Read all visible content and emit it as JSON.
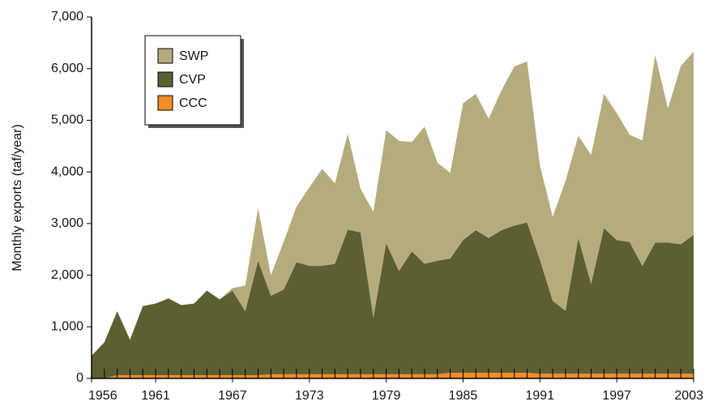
{
  "chart_data": {
    "type": "stacked_area",
    "ylabel": "Monthly exports (taf/year)",
    "x": [
      1956,
      1957,
      1958,
      1959,
      1960,
      1961,
      1962,
      1963,
      1964,
      1965,
      1966,
      1967,
      1968,
      1969,
      1970,
      1971,
      1972,
      1973,
      1974,
      1975,
      1976,
      1977,
      1978,
      1979,
      1980,
      1981,
      1982,
      1983,
      1984,
      1985,
      1986,
      1987,
      1988,
      1989,
      1990,
      1991,
      1992,
      1993,
      1994,
      1995,
      1996,
      1997,
      1998,
      1999,
      2000,
      2001,
      2002,
      2003
    ],
    "series": [
      {
        "name": "SWP",
        "color": "#b5ac7e",
        "values": [
          0,
          0,
          0,
          0,
          0,
          0,
          0,
          0,
          0,
          0,
          0,
          50,
          500,
          1020,
          400,
          930,
          1080,
          1520,
          1880,
          1560,
          1860,
          840,
          2050,
          2190,
          2520,
          2120,
          2660,
          1900,
          1660,
          2650,
          2640,
          2310,
          2710,
          3080,
          3120,
          1830,
          1630,
          2520,
          1980,
          2500,
          2600,
          2460,
          2080,
          2430,
          3630,
          2600,
          3450,
          3550
        ]
      },
      {
        "name": "CVP",
        "color": "#5d5f31",
        "values": [
          440,
          700,
          1240,
          690,
          1340,
          1390,
          1490,
          1360,
          1390,
          1640,
          1470,
          1640,
          1240,
          2220,
          1520,
          1640,
          2170,
          2100,
          2100,
          2140,
          2800,
          2750,
          1100,
          2540,
          2000,
          2380,
          2140,
          2200,
          2210,
          2570,
          2760,
          2610,
          2760,
          2850,
          2910,
          2210,
          1410,
          1220,
          2630,
          1740,
          2820,
          2590,
          2550,
          2090,
          2540,
          2540,
          2510,
          2690
        ]
      },
      {
        "name": "CCC",
        "color": "#f28c28",
        "values": [
          0,
          0,
          60,
          60,
          60,
          60,
          60,
          60,
          60,
          60,
          60,
          60,
          60,
          60,
          80,
          80,
          80,
          80,
          80,
          80,
          80,
          80,
          80,
          80,
          80,
          80,
          80,
          80,
          110,
          110,
          110,
          110,
          110,
          110,
          110,
          90,
          90,
          90,
          90,
          90,
          90,
          90,
          90,
          90,
          90,
          90,
          90,
          90
        ]
      }
    ],
    "xlim": [
      1956,
      2003
    ],
    "xticks": [
      1956,
      1961,
      1967,
      1973,
      1979,
      1985,
      1991,
      1997,
      2003
    ],
    "ylim": [
      0,
      7000
    ],
    "yticks": [
      0,
      {
        "value": 1000,
        "label": "1,000"
      },
      {
        "value": 2000,
        "label": "2,000"
      },
      {
        "value": 3000,
        "label": "3,000"
      },
      {
        "value": 4000,
        "label": "4,000"
      },
      {
        "value": 5000,
        "label": "5,000"
      },
      {
        "value": 6000,
        "label": "6,000"
      },
      {
        "value": 7000,
        "label": "7,000"
      }
    ],
    "legend": "upper left"
  }
}
